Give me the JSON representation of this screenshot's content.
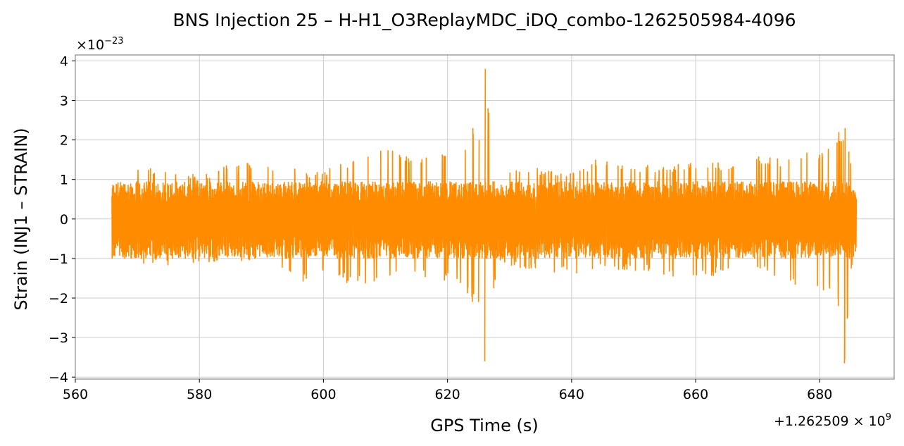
{
  "chart_data": {
    "type": "line",
    "title": "BNS Injection 25 – H-H1_O3ReplayMDC_iDQ_combo-1262505984-4096",
    "xlabel": "GPS Time (s)",
    "ylabel": "Strain (INJ1 – STRAIN)",
    "x_offset_label": "+1.262509",
    "x_offset_exp_base": "× 10",
    "x_offset_exp": "9",
    "y_scale_label": "×10",
    "y_scale_exp": "−23",
    "xlim": [
      560,
      692
    ],
    "ylim": [
      -4.05,
      4.15
    ],
    "x_ticks": [
      560,
      580,
      600,
      620,
      640,
      660,
      680
    ],
    "x_tick_labels": [
      "560",
      "580",
      "600",
      "620",
      "640",
      "660",
      "680"
    ],
    "y_ticks": [
      -4,
      -3,
      -2,
      -1,
      0,
      1,
      2,
      3,
      4
    ],
    "y_tick_labels": [
      "−4",
      "−3",
      "−2",
      "−1",
      "0",
      "1",
      "2",
      "3",
      "4"
    ],
    "grid": true,
    "line_color": "#ff8c00",
    "series": [
      {
        "x_range": [
          565.9,
          685.9
        ],
        "baseline_peak": 1.05,
        "envelope": [
          {
            "x": 565.9,
            "upper": 0.6,
            "lower": -0.8
          },
          {
            "x": 570,
            "upper": 1.3,
            "lower": -1.1
          },
          {
            "x": 575,
            "upper": 1.3,
            "lower": -1.2
          },
          {
            "x": 580,
            "upper": 1.1,
            "lower": -1.1
          },
          {
            "x": 585,
            "upper": 1.4,
            "lower": -1.1
          },
          {
            "x": 590,
            "upper": 1.5,
            "lower": -1.0
          },
          {
            "x": 595,
            "upper": 1.3,
            "lower": -1.4
          },
          {
            "x": 598,
            "upper": 1.2,
            "lower": -1.7
          },
          {
            "x": 600,
            "upper": 1.2,
            "lower": -1.4
          },
          {
            "x": 602,
            "upper": 1.5,
            "lower": -1.5
          },
          {
            "x": 605,
            "upper": 1.5,
            "lower": -1.7
          },
          {
            "x": 610,
            "upper": 1.8,
            "lower": -1.6
          },
          {
            "x": 614,
            "upper": 1.6,
            "lower": -1.4
          },
          {
            "x": 618,
            "upper": 1.7,
            "lower": -1.6
          },
          {
            "x": 622,
            "upper": 1.5,
            "lower": -1.6
          },
          {
            "x": 624,
            "upper": 2.3,
            "lower": -2.1
          },
          {
            "x": 625,
            "upper": 2.0,
            "lower": -2.1
          },
          {
            "x": 626,
            "upper": 3.8,
            "lower": -3.6
          },
          {
            "x": 628,
            "upper": 1.3,
            "lower": -1.2
          },
          {
            "x": 635,
            "upper": 1.3,
            "lower": -1.3
          },
          {
            "x": 640,
            "upper": 1.2,
            "lower": -1.4
          },
          {
            "x": 645,
            "upper": 1.6,
            "lower": -1.3
          },
          {
            "x": 650,
            "upper": 1.4,
            "lower": -1.3
          },
          {
            "x": 655,
            "upper": 1.3,
            "lower": -1.4
          },
          {
            "x": 660,
            "upper": 1.5,
            "lower": -1.6
          },
          {
            "x": 665,
            "upper": 1.4,
            "lower": -1.3
          },
          {
            "x": 670,
            "upper": 1.6,
            "lower": -1.3
          },
          {
            "x": 675,
            "upper": 1.5,
            "lower": -1.6
          },
          {
            "x": 678,
            "upper": 1.7,
            "lower": -1.8
          },
          {
            "x": 681,
            "upper": 1.8,
            "lower": -1.8
          },
          {
            "x": 683,
            "upper": 2.2,
            "lower": -2.2
          },
          {
            "x": 684,
            "upper": 2.3,
            "lower": -3.65
          },
          {
            "x": 685,
            "upper": 1.5,
            "lower": -1.4
          },
          {
            "x": 685.9,
            "upper": 0.8,
            "lower": -0.8
          }
        ]
      }
    ]
  }
}
